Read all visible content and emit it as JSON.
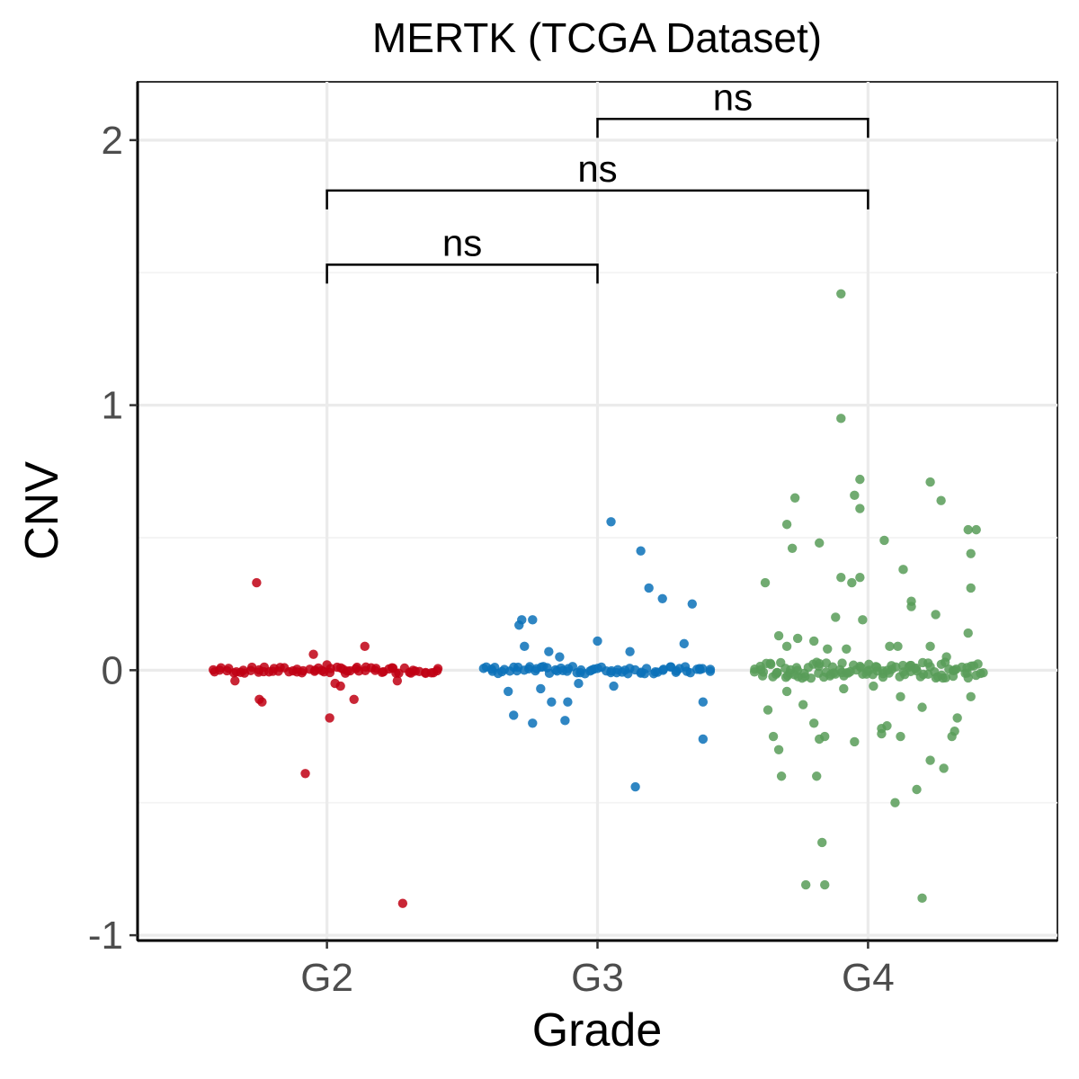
{
  "chart_data": {
    "type": "scatter",
    "title": "MERTK (TCGA Dataset)",
    "xlabel": "Grade",
    "ylabel": "CNV",
    "categories": [
      "G2",
      "G3",
      "G4"
    ],
    "ylim": [
      -1.02,
      2.22
    ],
    "yticks": [
      -1,
      0,
      1,
      2
    ],
    "grid": true,
    "legend": "none",
    "colors": {
      "G2": "#c00013",
      "G3": "#0a71b8",
      "G4": "#589c58"
    },
    "comparisons": [
      {
        "groups": [
          "G2",
          "G3"
        ],
        "label": "ns",
        "y": 1.53
      },
      {
        "groups": [
          "G2",
          "G4"
        ],
        "label": "ns",
        "y": 1.81
      },
      {
        "groups": [
          "G3",
          "G4"
        ],
        "label": "ns",
        "y": 2.08
      }
    ],
    "series": [
      {
        "name": "G2",
        "outliers": [
          {
            "jitter": -0.26,
            "y": 0.33
          },
          {
            "jitter": 0.0,
            "y": 0.02
          },
          {
            "jitter": -0.05,
            "y": 0.06
          },
          {
            "jitter": 0.14,
            "y": 0.09
          },
          {
            "jitter": -0.08,
            "y": -0.39
          },
          {
            "jitter": 0.01,
            "y": -0.18
          },
          {
            "jitter": 0.28,
            "y": -0.88
          },
          {
            "jitter": -0.25,
            "y": -0.11
          },
          {
            "jitter": -0.24,
            "y": -0.12
          },
          {
            "jitter": 0.1,
            "y": -0.11
          },
          {
            "jitter": 0.05,
            "y": -0.06
          },
          {
            "jitter": 0.03,
            "y": -0.05
          },
          {
            "jitter": -0.34,
            "y": -0.04
          },
          {
            "jitter": 0.26,
            "y": -0.04
          }
        ],
        "baseline": {
          "count": 70,
          "spread": 0.012
        }
      },
      {
        "name": "G3",
        "outliers": [
          {
            "jitter": 0.05,
            "y": 0.56
          },
          {
            "jitter": 0.16,
            "y": 0.45
          },
          {
            "jitter": 0.19,
            "y": 0.31
          },
          {
            "jitter": 0.24,
            "y": 0.27
          },
          {
            "jitter": 0.35,
            "y": 0.25
          },
          {
            "jitter": -0.28,
            "y": 0.19
          },
          {
            "jitter": -0.24,
            "y": 0.19
          },
          {
            "jitter": -0.29,
            "y": 0.17
          },
          {
            "jitter": 0.0,
            "y": 0.11
          },
          {
            "jitter": 0.32,
            "y": 0.1
          },
          {
            "jitter": -0.27,
            "y": 0.09
          },
          {
            "jitter": 0.12,
            "y": 0.07
          },
          {
            "jitter": -0.18,
            "y": 0.07
          },
          {
            "jitter": -0.14,
            "y": 0.05
          },
          {
            "jitter": -0.33,
            "y": -0.08
          },
          {
            "jitter": -0.21,
            "y": -0.07
          },
          {
            "jitter": -0.17,
            "y": -0.12
          },
          {
            "jitter": -0.11,
            "y": -0.12
          },
          {
            "jitter": -0.31,
            "y": -0.17
          },
          {
            "jitter": -0.24,
            "y": -0.2
          },
          {
            "jitter": -0.12,
            "y": -0.19
          },
          {
            "jitter": 0.39,
            "y": -0.12
          },
          {
            "jitter": 0.39,
            "y": -0.26
          },
          {
            "jitter": 0.14,
            "y": -0.44
          },
          {
            "jitter": 0.06,
            "y": -0.06
          },
          {
            "jitter": -0.07,
            "y": -0.05
          }
        ],
        "baseline": {
          "count": 70,
          "spread": 0.014
        }
      },
      {
        "name": "G4",
        "outliers": [
          {
            "jitter": -0.1,
            "y": 1.42
          },
          {
            "jitter": -0.1,
            "y": 0.95
          },
          {
            "jitter": -0.03,
            "y": 0.72
          },
          {
            "jitter": 0.23,
            "y": 0.71
          },
          {
            "jitter": -0.27,
            "y": 0.65
          },
          {
            "jitter": 0.27,
            "y": 0.64
          },
          {
            "jitter": -0.05,
            "y": 0.66
          },
          {
            "jitter": -0.03,
            "y": 0.61
          },
          {
            "jitter": -0.3,
            "y": 0.55
          },
          {
            "jitter": 0.37,
            "y": 0.53
          },
          {
            "jitter": 0.4,
            "y": 0.53
          },
          {
            "jitter": 0.06,
            "y": 0.49
          },
          {
            "jitter": -0.18,
            "y": 0.48
          },
          {
            "jitter": -0.28,
            "y": 0.46
          },
          {
            "jitter": 0.38,
            "y": 0.44
          },
          {
            "jitter": 0.13,
            "y": 0.38
          },
          {
            "jitter": -0.1,
            "y": 0.35
          },
          {
            "jitter": -0.03,
            "y": 0.35
          },
          {
            "jitter": -0.38,
            "y": 0.33
          },
          {
            "jitter": -0.06,
            "y": 0.33
          },
          {
            "jitter": 0.38,
            "y": 0.31
          },
          {
            "jitter": 0.16,
            "y": 0.26
          },
          {
            "jitter": 0.16,
            "y": 0.24
          },
          {
            "jitter": -0.12,
            "y": 0.2
          },
          {
            "jitter": -0.02,
            "y": 0.19
          },
          {
            "jitter": 0.25,
            "y": 0.21
          },
          {
            "jitter": 0.37,
            "y": 0.14
          },
          {
            "jitter": -0.33,
            "y": 0.13
          },
          {
            "jitter": -0.2,
            "y": -0.2
          },
          {
            "jitter": -0.35,
            "y": -0.25
          },
          {
            "jitter": -0.33,
            "y": -0.3
          },
          {
            "jitter": -0.18,
            "y": -0.26
          },
          {
            "jitter": -0.16,
            "y": -0.25
          },
          {
            "jitter": -0.05,
            "y": -0.27
          },
          {
            "jitter": 0.05,
            "y": -0.22
          },
          {
            "jitter": 0.05,
            "y": -0.24
          },
          {
            "jitter": 0.07,
            "y": -0.21
          },
          {
            "jitter": 0.31,
            "y": -0.25
          },
          {
            "jitter": 0.28,
            "y": -0.37
          },
          {
            "jitter": 0.23,
            "y": -0.34
          },
          {
            "jitter": 0.18,
            "y": -0.45
          },
          {
            "jitter": 0.1,
            "y": -0.5
          },
          {
            "jitter": -0.32,
            "y": -0.4
          },
          {
            "jitter": -0.19,
            "y": -0.4
          },
          {
            "jitter": -0.17,
            "y": -0.65
          },
          {
            "jitter": -0.23,
            "y": -0.81
          },
          {
            "jitter": -0.16,
            "y": -0.81
          },
          {
            "jitter": 0.2,
            "y": -0.86
          },
          {
            "jitter": 0.12,
            "y": -0.25
          },
          {
            "jitter": 0.33,
            "y": -0.18
          },
          {
            "jitter": 0.32,
            "y": -0.23
          },
          {
            "jitter": 0.2,
            "y": -0.14
          },
          {
            "jitter": 0.12,
            "y": -0.1
          },
          {
            "jitter": 0.38,
            "y": -0.1
          },
          {
            "jitter": -0.37,
            "y": -0.15
          },
          {
            "jitter": -0.24,
            "y": -0.13
          },
          {
            "jitter": -0.09,
            "y": -0.07
          },
          {
            "jitter": 0.02,
            "y": -0.06
          },
          {
            "jitter": -0.3,
            "y": -0.08
          },
          {
            "jitter": 0.08,
            "y": 0.09
          },
          {
            "jitter": -0.15,
            "y": 0.08
          },
          {
            "jitter": -0.3,
            "y": 0.09
          },
          {
            "jitter": 0.23,
            "y": 0.09
          },
          {
            "jitter": 0.11,
            "y": 0.09
          },
          {
            "jitter": -0.08,
            "y": 0.08
          },
          {
            "jitter": 0.29,
            "y": 0.05
          },
          {
            "jitter": -0.2,
            "y": 0.11
          },
          {
            "jitter": -0.26,
            "y": 0.12
          }
        ],
        "baseline": {
          "count": 110,
          "spread": 0.03
        }
      }
    ]
  }
}
